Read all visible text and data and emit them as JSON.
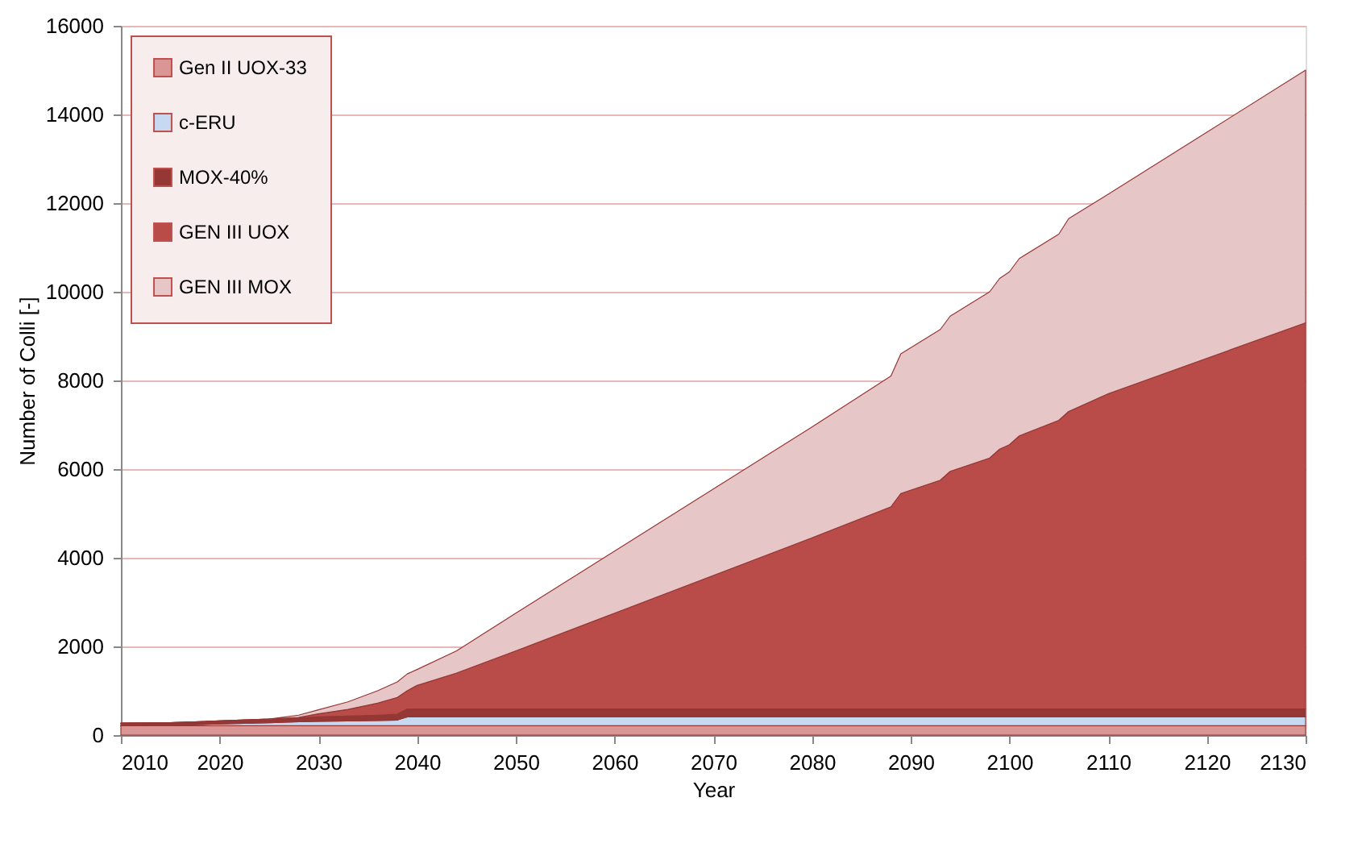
{
  "chart_data": {
    "type": "area",
    "stacked": true,
    "xlabel": "Year",
    "ylabel": "Number of Colli [-]",
    "x": [
      2010,
      2015,
      2020,
      2025,
      2028,
      2030,
      2033,
      2036,
      2038,
      2039,
      2040,
      2044,
      2050,
      2060,
      2070,
      2080,
      2088,
      2089,
      2093,
      2094,
      2098,
      2099,
      2100,
      2101,
      2105,
      2106,
      2110,
      2120,
      2130
    ],
    "series": [
      {
        "name": "Gen II UOX-33",
        "color": "#d99694",
        "values": [
          210,
          210,
          210,
          210,
          210,
          210,
          210,
          210,
          210,
          210,
          210,
          210,
          210,
          210,
          210,
          210,
          210,
          210,
          210,
          210,
          210,
          210,
          210,
          210,
          210,
          210,
          210,
          210,
          210
        ]
      },
      {
        "name": "c-ERU",
        "color": "#c6d9f1",
        "values": [
          0,
          10,
          40,
          70,
          90,
          100,
          110,
          120,
          130,
          200,
          200,
          200,
          200,
          200,
          200,
          200,
          200,
          200,
          200,
          200,
          200,
          200,
          200,
          200,
          200,
          200,
          200,
          200,
          200
        ]
      },
      {
        "name": "MOX-40%",
        "color": "#953735",
        "values": [
          60,
          60,
          70,
          80,
          90,
          100,
          110,
          120,
          130,
          180,
          180,
          180,
          180,
          180,
          180,
          180,
          180,
          180,
          180,
          180,
          180,
          180,
          180,
          180,
          180,
          180,
          180,
          180,
          180
        ]
      },
      {
        "name": "GEN III UOX",
        "color": "#b94c49",
        "values": [
          0,
          0,
          0,
          0,
          10,
          70,
          150,
          270,
          380,
          410,
          530,
          810,
          1310,
          2160,
          3010,
          3860,
          4560,
          4860,
          5160,
          5360,
          5660,
          5860,
          5960,
          6160,
          6510,
          6710,
          7110,
          7910,
          8710
        ]
      },
      {
        "name": "GEN III MOX",
        "color": "#e6c6c6",
        "values": [
          0,
          0,
          0,
          0,
          50,
          90,
          170,
          280,
          350,
          380,
          360,
          500,
          850,
          1400,
          1950,
          2500,
          2950,
          3150,
          3400,
          3500,
          3750,
          3850,
          3900,
          4000,
          4200,
          4350,
          4500,
          5100,
          5700
        ]
      }
    ],
    "xlim": [
      2010,
      2130
    ],
    "xticks": [
      2010,
      2020,
      2030,
      2040,
      2050,
      2060,
      2070,
      2080,
      2090,
      2100,
      2110,
      2120,
      2130
    ],
    "ylim": [
      0,
      16000
    ],
    "yticks": [
      0,
      2000,
      4000,
      6000,
      8000,
      10000,
      12000,
      14000,
      16000
    ],
    "grid": "y",
    "legend": "top left"
  }
}
